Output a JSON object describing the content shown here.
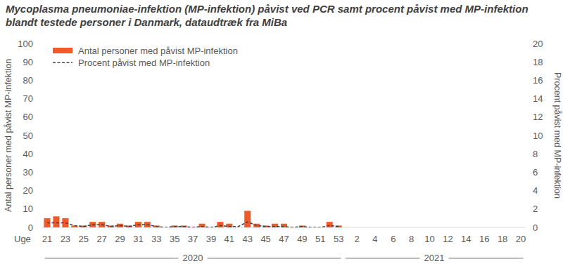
{
  "chart_data": {
    "type": "bar",
    "title": "Mycoplasma pneumoniae-infektion (MP-infektion) påvist ved PCR samt procent påvist med MP-infektion blandt testede personer i Danmark, dataudtræk fra MiBa",
    "x_label": "Uge",
    "y_label": "Antal personer med påvist MP-infektion",
    "y2_label": "Procent påvist med MP-infektion",
    "categories": [
      "21",
      null,
      "23",
      null,
      "25",
      null,
      "27",
      null,
      "29",
      null,
      "31",
      null,
      "33",
      null,
      "35",
      null,
      "37",
      null,
      "39",
      null,
      "41",
      null,
      "43",
      null,
      "45",
      null,
      "47",
      null,
      "49",
      null,
      "51",
      null,
      "53",
      null,
      "2",
      null,
      "4",
      null,
      "6",
      null,
      "8",
      null,
      "10",
      null,
      "12",
      null,
      "14",
      null,
      "16",
      null,
      "18",
      null,
      "20"
    ],
    "x_groups": [
      {
        "label": "2020",
        "count": 33
      },
      {
        "label": "2021",
        "count": 20
      }
    ],
    "series": [
      {
        "name": "Antal personer med påvist MP-infektion",
        "type": "bar",
        "color": "#f05a28",
        "values": [
          5,
          6,
          5,
          1,
          1,
          3,
          3,
          1,
          2,
          1,
          3,
          3,
          1,
          0,
          1,
          1,
          0,
          2,
          0,
          3,
          2,
          0,
          9,
          2,
          1,
          2,
          2,
          0,
          1,
          0,
          0,
          3,
          1,
          null,
          null,
          null,
          null,
          null,
          null,
          null,
          null,
          null,
          null,
          null,
          null,
          null,
          null,
          null,
          null,
          null,
          null,
          null,
          null
        ]
      },
      {
        "name": "Procent påvist med MP-infektion",
        "type": "line",
        "color": "#404040",
        "line_style": "dashed",
        "axis": "y2",
        "values": [
          0.5,
          0.5,
          0.5,
          0.2,
          0.1,
          0.3,
          0.3,
          0.1,
          0.2,
          0.1,
          0.3,
          0.3,
          0.1,
          0.0,
          0.1,
          0.1,
          0.0,
          0.1,
          0.0,
          0.2,
          0.1,
          0.1,
          0.6,
          0.2,
          0.1,
          0.1,
          0.1,
          0.0,
          0.1,
          0.0,
          0.0,
          0.2,
          0.1,
          null,
          null,
          null,
          null,
          null,
          null,
          null,
          null,
          null,
          null,
          null,
          null,
          null,
          null,
          null,
          null,
          null,
          null,
          null,
          null
        ]
      }
    ],
    "ylim": [
      0,
      100
    ],
    "yticks": [
      0,
      10,
      20,
      30,
      40,
      50,
      60,
      70,
      80,
      90,
      100
    ],
    "y2lim": [
      0,
      20
    ],
    "y2ticks": [
      0,
      2,
      4,
      6,
      8,
      10,
      12,
      14,
      16,
      18,
      20
    ],
    "grid": false,
    "legend": "top-left"
  }
}
